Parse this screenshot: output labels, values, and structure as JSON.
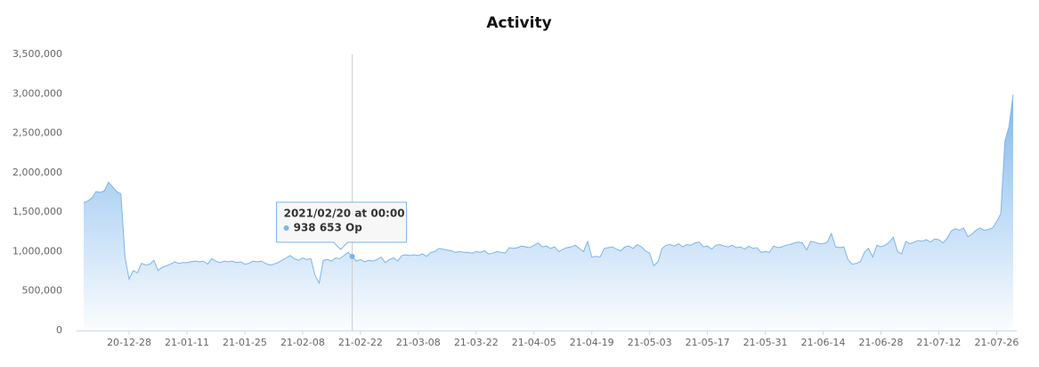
{
  "chart_data": {
    "type": "area",
    "title": "Activity",
    "x": [
      "20-12-17",
      "20-12-18",
      "20-12-19",
      "20-12-20",
      "20-12-21",
      "20-12-22",
      "20-12-23",
      "20-12-24",
      "20-12-25",
      "20-12-26",
      "20-12-27",
      "20-12-28",
      "20-12-29",
      "20-12-30",
      "20-12-31",
      "21-01-01",
      "21-01-02",
      "21-01-03",
      "21-01-04",
      "21-01-05",
      "21-01-06",
      "21-01-07",
      "21-01-08",
      "21-01-09",
      "21-01-10",
      "21-01-11",
      "21-01-12",
      "21-01-13",
      "21-01-14",
      "21-01-15",
      "21-01-16",
      "21-01-17",
      "21-01-18",
      "21-01-19",
      "21-01-20",
      "21-01-21",
      "21-01-22",
      "21-01-23",
      "21-01-24",
      "21-01-25",
      "21-01-26",
      "21-01-27",
      "21-01-28",
      "21-01-29",
      "21-01-30",
      "21-01-31",
      "21-02-01",
      "21-02-02",
      "21-02-03",
      "21-02-04",
      "21-02-05",
      "21-02-06",
      "21-02-07",
      "21-02-08",
      "21-02-09",
      "21-02-10",
      "21-02-11",
      "21-02-12",
      "21-02-13",
      "21-02-14",
      "21-02-15",
      "21-02-16",
      "21-02-17",
      "21-02-18",
      "21-02-19",
      "21-02-20",
      "21-02-21",
      "21-02-22",
      "21-02-23",
      "21-02-24",
      "21-02-25",
      "21-02-26",
      "21-02-27",
      "21-02-28",
      "21-03-01",
      "21-03-02",
      "21-03-03",
      "21-03-04",
      "21-03-05",
      "21-03-06",
      "21-03-07",
      "21-03-08",
      "21-03-09",
      "21-03-10",
      "21-03-11",
      "21-03-12",
      "21-03-13",
      "21-03-14",
      "21-03-15",
      "21-03-16",
      "21-03-17",
      "21-03-18",
      "21-03-19",
      "21-03-20",
      "21-03-21",
      "21-03-22",
      "21-03-23",
      "21-03-24",
      "21-03-25",
      "21-03-26",
      "21-03-27",
      "21-03-28",
      "21-03-29",
      "21-03-30",
      "21-03-31",
      "21-04-01",
      "21-04-02",
      "21-04-03",
      "21-04-04",
      "21-04-05",
      "21-04-06",
      "21-04-07",
      "21-04-08",
      "21-04-09",
      "21-04-10",
      "21-04-11",
      "21-04-12",
      "21-04-13",
      "21-04-14",
      "21-04-15",
      "21-04-16",
      "21-04-17",
      "21-04-18",
      "21-04-19",
      "21-04-20",
      "21-04-21",
      "21-04-22",
      "21-04-23",
      "21-04-24",
      "21-04-25",
      "21-04-26",
      "21-04-27",
      "21-04-28",
      "21-04-29",
      "21-04-30",
      "21-05-01",
      "21-05-02",
      "21-05-03",
      "21-05-04",
      "21-05-05",
      "21-05-06",
      "21-05-07",
      "21-05-08",
      "21-05-09",
      "21-05-10",
      "21-05-11",
      "21-05-12",
      "21-05-13",
      "21-05-14",
      "21-05-15",
      "21-05-16",
      "21-05-17",
      "21-05-18",
      "21-05-19",
      "21-05-20",
      "21-05-21",
      "21-05-22",
      "21-05-23",
      "21-05-24",
      "21-05-25",
      "21-05-26",
      "21-05-27",
      "21-05-28",
      "21-05-29",
      "21-05-30",
      "21-05-31",
      "21-06-01",
      "21-06-02",
      "21-06-03",
      "21-06-04",
      "21-06-05",
      "21-06-06",
      "21-06-07",
      "21-06-08",
      "21-06-09",
      "21-06-10",
      "21-06-11",
      "21-06-12",
      "21-06-13",
      "21-06-14",
      "21-06-15",
      "21-06-16",
      "21-06-17",
      "21-06-18",
      "21-06-19",
      "21-06-20",
      "21-06-21",
      "21-06-22",
      "21-06-23",
      "21-06-24",
      "21-06-25",
      "21-06-26",
      "21-06-27",
      "21-06-28",
      "21-06-29",
      "21-06-30",
      "21-07-01",
      "21-07-02",
      "21-07-03",
      "21-07-04",
      "21-07-05",
      "21-07-06",
      "21-07-07",
      "21-07-08",
      "21-07-09",
      "21-07-10",
      "21-07-11",
      "21-07-12",
      "21-07-13",
      "21-07-14",
      "21-07-15",
      "21-07-16",
      "21-07-17",
      "21-07-18",
      "21-07-19",
      "21-07-20",
      "21-07-21",
      "21-07-22",
      "21-07-23",
      "21-07-24",
      "21-07-25",
      "21-07-26",
      "21-07-27",
      "21-07-28",
      "21-07-29",
      "21-07-30"
    ],
    "series": [
      {
        "name": "Op",
        "color": "#7cb5ec",
        "values": [
          1620000,
          1640000,
          1680000,
          1760000,
          1750000,
          1770000,
          1880000,
          1820000,
          1760000,
          1730000,
          930000,
          650000,
          760000,
          730000,
          850000,
          830000,
          840000,
          890000,
          760000,
          800000,
          820000,
          840000,
          870000,
          850000,
          860000,
          860000,
          870000,
          880000,
          870000,
          880000,
          840000,
          910000,
          880000,
          860000,
          880000,
          870000,
          880000,
          860000,
          870000,
          840000,
          850000,
          880000,
          870000,
          880000,
          850000,
          830000,
          840000,
          860000,
          890000,
          920000,
          950000,
          910000,
          890000,
          920000,
          900000,
          910000,
          700000,
          600000,
          890000,
          900000,
          880000,
          920000,
          910000,
          950000,
          990000,
          938653,
          880000,
          900000,
          870000,
          890000,
          880000,
          900000,
          930000,
          860000,
          900000,
          920000,
          880000,
          950000,
          960000,
          950000,
          960000,
          950000,
          970000,
          940000,
          990000,
          1000000,
          1040000,
          1030000,
          1020000,
          1010000,
          990000,
          1000000,
          990000,
          990000,
          980000,
          1000000,
          990000,
          1010000,
          970000,
          980000,
          1000000,
          990000,
          980000,
          1050000,
          1040000,
          1050000,
          1070000,
          1060000,
          1050000,
          1080000,
          1110000,
          1060000,
          1070000,
          1040000,
          1060000,
          1000000,
          1030000,
          1050000,
          1060000,
          1080000,
          1040000,
          1000000,
          1130000,
          930000,
          940000,
          930000,
          1040000,
          1050000,
          1060000,
          1030000,
          1010000,
          1060000,
          1070000,
          1040000,
          1090000,
          1060000,
          1010000,
          980000,
          820000,
          870000,
          1040000,
          1080000,
          1090000,
          1070000,
          1100000,
          1060000,
          1090000,
          1080000,
          1110000,
          1120000,
          1060000,
          1070000,
          1030000,
          1080000,
          1090000,
          1070000,
          1060000,
          1080000,
          1050000,
          1060000,
          1030000,
          1070000,
          1040000,
          1050000,
          990000,
          1000000,
          990000,
          1070000,
          1050000,
          1060000,
          1080000,
          1090000,
          1110000,
          1120000,
          1110000,
          1020000,
          1130000,
          1120000,
          1100000,
          1100000,
          1120000,
          1230000,
          1060000,
          1050000,
          1060000,
          900000,
          840000,
          850000,
          870000,
          990000,
          1040000,
          930000,
          1080000,
          1060000,
          1080000,
          1120000,
          1180000,
          1000000,
          970000,
          1130000,
          1100000,
          1120000,
          1140000,
          1130000,
          1150000,
          1120000,
          1160000,
          1150000,
          1110000,
          1170000,
          1260000,
          1290000,
          1270000,
          1300000,
          1190000,
          1220000,
          1270000,
          1300000,
          1270000,
          1280000,
          1300000,
          1380000,
          1480000,
          2400000,
          2590000,
          2990000
        ]
      }
    ],
    "xticks": [
      "20-12-28",
      "21-01-11",
      "21-01-25",
      "21-02-08",
      "21-02-22",
      "21-03-08",
      "21-03-22",
      "21-04-05",
      "21-04-19",
      "21-05-03",
      "21-05-17",
      "21-05-31",
      "21-06-14",
      "21-06-28",
      "21-07-12",
      "21-07-26"
    ],
    "ylim": [
      0,
      3500000
    ],
    "yticks": [
      0,
      {
        "value": 500000,
        "label": "500,000"
      },
      {
        "value": 1000000,
        "label": "1,000,000"
      },
      {
        "value": 1500000,
        "label": "1,500,000"
      },
      {
        "value": 2000000,
        "label": "2,000,000"
      },
      {
        "value": 2500000,
        "label": "2,500,000"
      },
      {
        "value": 3000000,
        "label": "3,000,000"
      },
      {
        "value": 3500000,
        "label": "3,500,000"
      }
    ],
    "tooltip": {
      "x": "21-02-20",
      "title": "2021/02/20 at 00:00",
      "text": "938 653 Op"
    }
  }
}
